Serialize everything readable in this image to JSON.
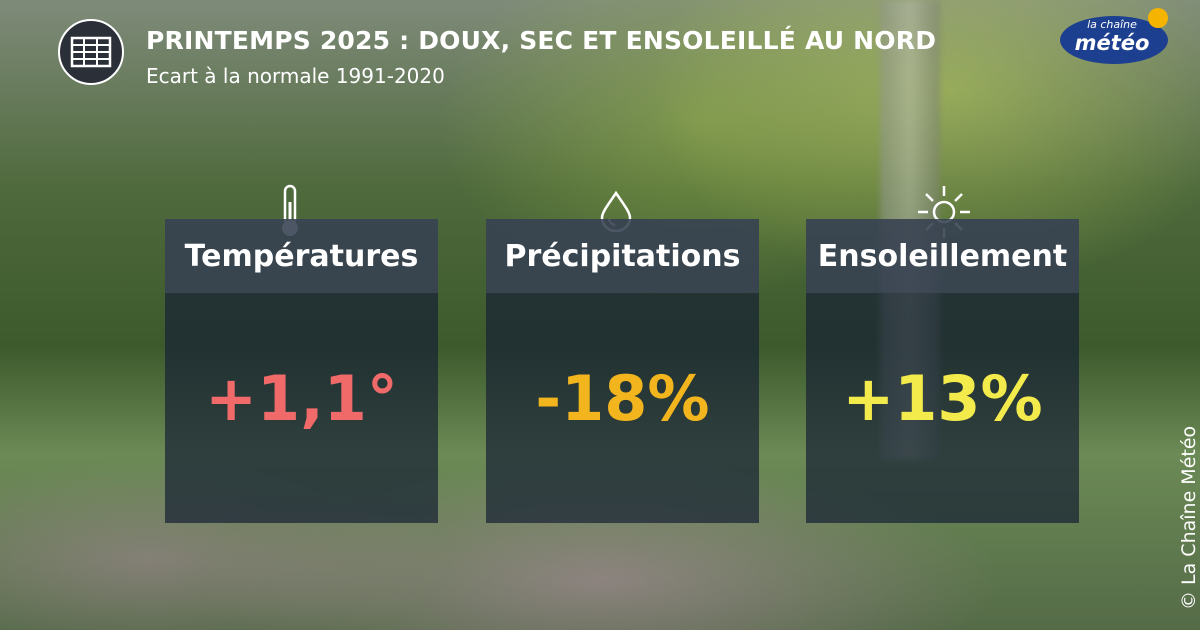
{
  "header": {
    "title": "PRINTEMPS 2025 : DOUX, SEC ET ENSOLEILLÉ AU NORD",
    "subtitle": "Ecart à la normale 1991-2020"
  },
  "logo": {
    "line1": "la chaîne",
    "line2": "météo"
  },
  "cards": [
    {
      "label": "Températures",
      "value": "+1,1°"
    },
    {
      "label": "Précipitations",
      "value": "-18%"
    },
    {
      "label": "Ensoleillement",
      "value": "+13%"
    }
  ],
  "copyright": "© La Chaîne Météo"
}
